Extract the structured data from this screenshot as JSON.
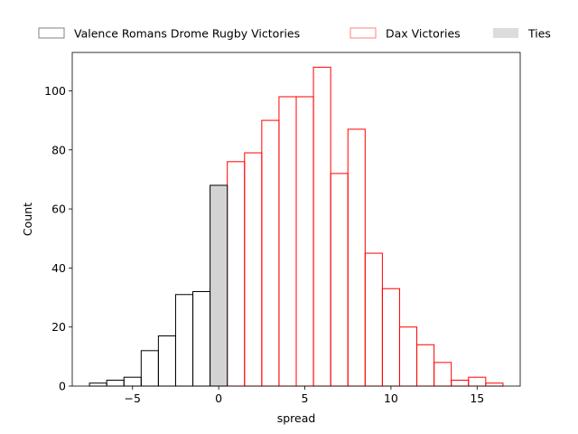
{
  "chart_data": {
    "type": "bar",
    "subtype": "histogram",
    "xlabel": "spread",
    "ylabel": "Count",
    "xlim": [
      -8.5,
      17.5
    ],
    "ylim": [
      0,
      113
    ],
    "xticks": [
      -5,
      0,
      5,
      10,
      15
    ],
    "xtick_labels": [
      "−5",
      "0",
      "5",
      "10",
      "15"
    ],
    "yticks": [
      0,
      20,
      40,
      60,
      80,
      100
    ],
    "ytick_labels": [
      "0",
      "20",
      "40",
      "60",
      "80",
      "100"
    ],
    "bin_width": 1,
    "grid": false,
    "legend_position": "top, above plot",
    "series": [
      {
        "name": "Valence Romans Drome Rugby Victories",
        "color": "#000000",
        "fill": "none",
        "legend_color": "#808080",
        "x": [
          -7,
          -6,
          -5,
          -4,
          -3,
          -2,
          -1
        ],
        "values": [
          1,
          2,
          3,
          12,
          17,
          31,
          32
        ]
      },
      {
        "name": "Dax Victories",
        "color": "#ff0000",
        "fill": "none",
        "legend_color": "#ff8080",
        "x": [
          1,
          2,
          3,
          4,
          5,
          6,
          7,
          8,
          9,
          10,
          11,
          12,
          13,
          14,
          15,
          16
        ],
        "values": [
          76,
          79,
          90,
          98,
          98,
          108,
          72,
          87,
          45,
          33,
          20,
          14,
          8,
          2,
          3,
          1
        ]
      },
      {
        "name": "Ties",
        "color": "#000000",
        "fill": "#d3d3d3",
        "legend_color": "#dcdcdc",
        "x": [
          0
        ],
        "values": [
          68
        ]
      }
    ]
  }
}
